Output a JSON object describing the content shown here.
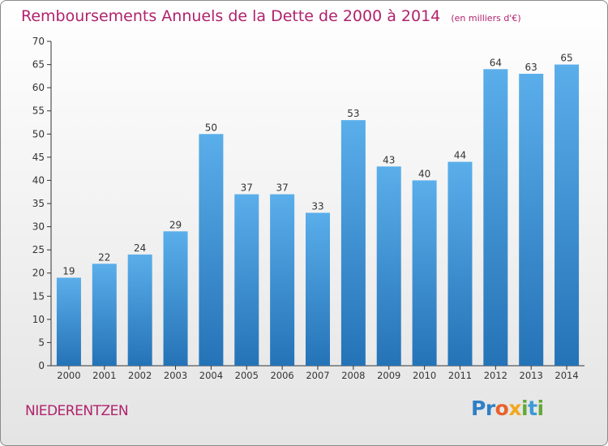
{
  "chart_data": {
    "type": "bar",
    "title": "Remboursements Annuels de la Dette de 2000 à 2014",
    "unit": "(en milliers d'€)",
    "categories": [
      "2000",
      "2001",
      "2002",
      "2003",
      "2004",
      "2005",
      "2006",
      "2007",
      "2008",
      "2009",
      "2010",
      "2011",
      "2012",
      "2013",
      "2014"
    ],
    "values": [
      19,
      22,
      24,
      29,
      50,
      37,
      37,
      33,
      53,
      43,
      40,
      44,
      64,
      63,
      65
    ],
    "ylim": [
      0,
      70
    ],
    "yticks": [
      0,
      5,
      10,
      15,
      20,
      25,
      30,
      35,
      40,
      45,
      50,
      55,
      60,
      65,
      70
    ],
    "grid": false,
    "bar_color_top": "#5aaeea",
    "bar_color_bottom": "#2573b7"
  },
  "footer": {
    "commune": "NIEDERENTZEN",
    "logo": "Proxiti"
  },
  "colors": {
    "title": "#b0226c",
    "axis": "#333333"
  }
}
